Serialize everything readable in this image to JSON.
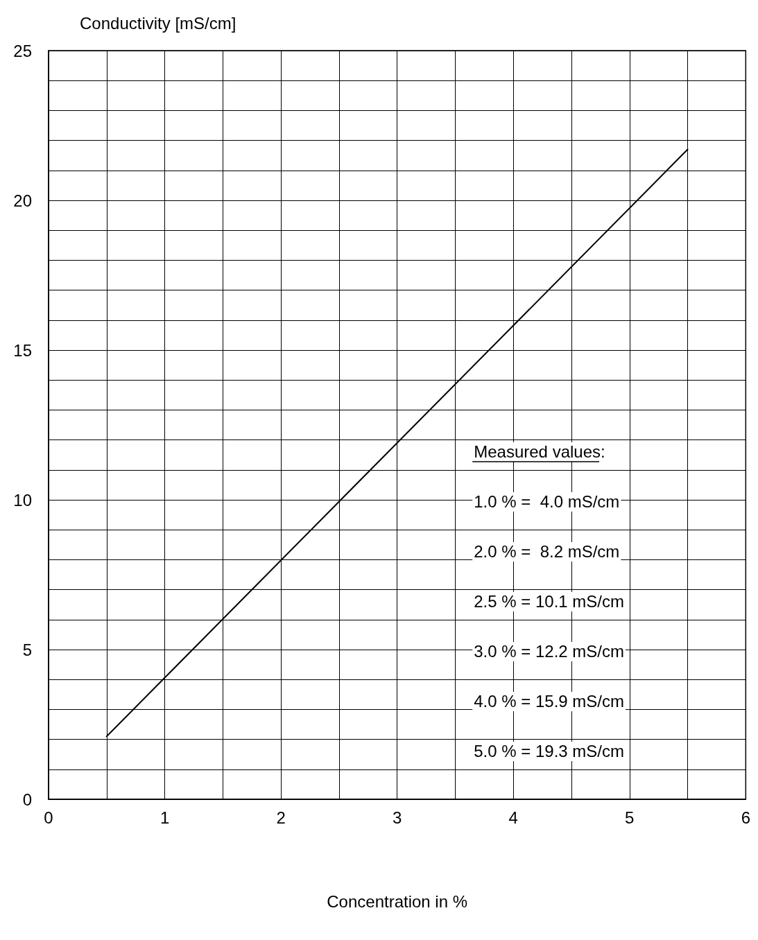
{
  "chart_data": {
    "type": "line",
    "xlabel": "Concentration in %",
    "ylabel": "Conductivity [mS/cm]",
    "x": [
      0.5,
      5.5
    ],
    "series": [
      {
        "color": "#000000",
        "values": [
          2.1,
          21.7
        ]
      }
    ],
    "xlim": [
      0,
      6
    ],
    "xticks": [
      0,
      {
        "value": 0.5,
        "label": null
      },
      1,
      {
        "value": 1.5,
        "label": null
      },
      2,
      {
        "value": 2.5,
        "label": null
      },
      3,
      {
        "value": 3.5,
        "label": null
      },
      4,
      {
        "value": 4.5,
        "label": null
      },
      5,
      {
        "value": 5.5,
        "label": null
      },
      6
    ],
    "ylim": [
      0,
      25
    ],
    "yticks": [
      0,
      {
        "value": 1,
        "label": null
      },
      {
        "value": 2,
        "label": null
      },
      {
        "value": 3,
        "label": null
      },
      {
        "value": 4,
        "label": null
      },
      5,
      {
        "value": 6,
        "label": null
      },
      {
        "value": 7,
        "label": null
      },
      {
        "value": 8,
        "label": null
      },
      {
        "value": 9,
        "label": null
      },
      10,
      {
        "value": 11,
        "label": null
      },
      {
        "value": 12,
        "label": null
      },
      {
        "value": 13,
        "label": null
      },
      {
        "value": 14,
        "label": null
      },
      15,
      {
        "value": 16,
        "label": null
      },
      {
        "value": 17,
        "label": null
      },
      {
        "value": 18,
        "label": null
      },
      {
        "value": 19,
        "label": null
      },
      20,
      {
        "value": 21,
        "label": null
      },
      {
        "value": 22,
        "label": null
      },
      {
        "value": 23,
        "label": null
      },
      {
        "value": 24,
        "label": null
      },
      25
    ],
    "grid": true,
    "marker": "none",
    "line_style": "solid",
    "annotations": [
      "Measured values:",
      "1.0 % =  4.0 mS/cm",
      "2.0 % =  8.2 mS/cm",
      "2.5 % = 10.1 mS/cm",
      "3.0 % = 12.2 mS/cm",
      "4.0 % = 15.9 mS/cm",
      "5.0 % = 19.3 mS/cm"
    ]
  }
}
